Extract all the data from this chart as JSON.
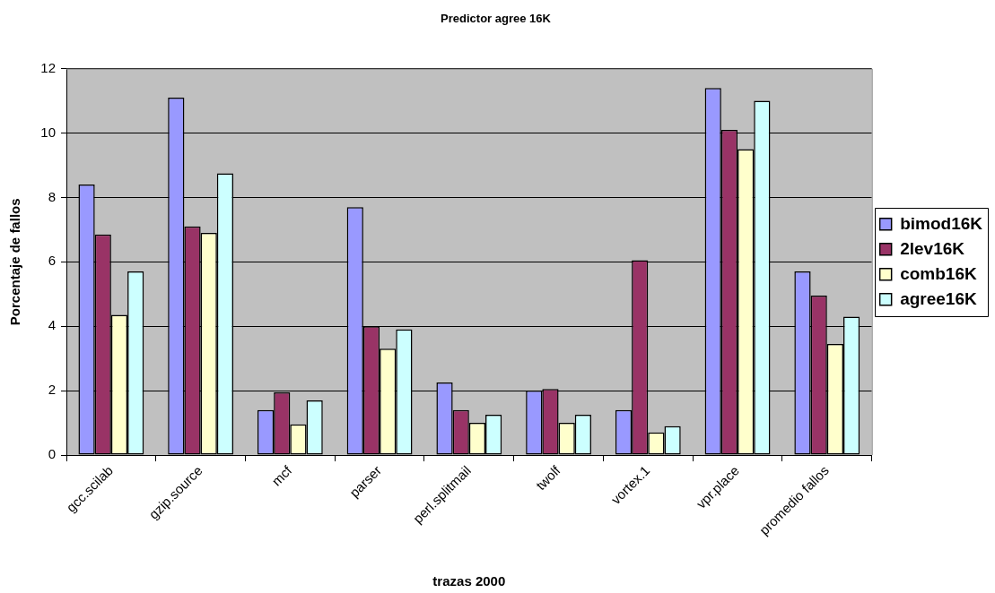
{
  "chart_data": {
    "type": "bar",
    "title": "Predictor agree 16K",
    "xlabel": "trazas 2000",
    "ylabel": "Porcentaje de fallos",
    "categories": [
      "gcc.scilab",
      "gzip.source",
      "mcf",
      "parser",
      "perl.splitmail",
      "twolf",
      "vortex.1",
      "vpr.place",
      "promedio fallos"
    ],
    "series": [
      {
        "name": "bimod16K",
        "color": "#9999ff",
        "values": [
          8.4,
          11.1,
          1.4,
          7.7,
          2.25,
          2.0,
          1.4,
          11.4,
          5.7
        ]
      },
      {
        "name": "2lev16K",
        "color": "#993366",
        "values": [
          6.85,
          7.1,
          1.95,
          4.0,
          1.4,
          2.05,
          6.05,
          10.1,
          4.95
        ]
      },
      {
        "name": "comb16K",
        "color": "#ffffcc",
        "values": [
          4.35,
          6.9,
          0.95,
          3.3,
          1.0,
          1.0,
          0.7,
          9.5,
          3.45
        ]
      },
      {
        "name": "agree16K",
        "color": "#ccffff",
        "values": [
          5.7,
          8.75,
          1.7,
          3.9,
          1.25,
          1.25,
          0.9,
          11.0,
          4.3
        ]
      }
    ],
    "ylim": [
      0,
      12
    ],
    "yticks": [
      0,
      2,
      4,
      6,
      8,
      10,
      12
    ],
    "grid": "y",
    "legend": "right"
  }
}
